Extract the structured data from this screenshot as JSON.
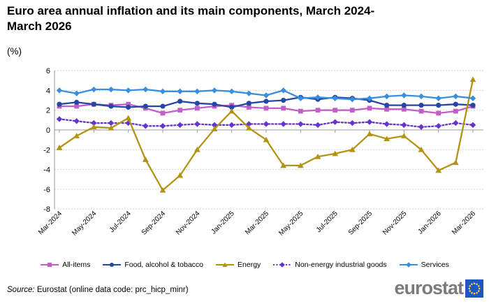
{
  "title": "Euro area annual inflation and its main components, March 2024-March 2026",
  "unit_label": "(%)",
  "source_prefix": "Source:",
  "source_text": "Eurostat (online data code: prc_hicp_minr)",
  "logo_text": "eurostat",
  "colors": {
    "all_items": "#c05fc5",
    "food": "#2646a5",
    "energy": "#b29313",
    "non_energy_goods": "#6633cc",
    "services": "#3a8fdd",
    "grid": "#c9c9c9",
    "axis": "#999999",
    "logo_blue": "#1e56c4",
    "logo_star_yellow": "#f8d12e"
  },
  "chart_data": {
    "type": "line",
    "x": [
      "Mar-2024",
      "Apr-2024",
      "May-2024",
      "Jun-2024",
      "Jul-2024",
      "Aug-2024",
      "Sep-2024",
      "Oct-2024",
      "Nov-2024",
      "Dec-2024",
      "Jan-2025",
      "Feb-2025",
      "Mar-2025",
      "Apr-2025",
      "May-2025",
      "Jun-2025",
      "Jul-2025",
      "Aug-2025",
      "Sep-2025",
      "Oct-2025",
      "Nov-2025",
      "Dec-2025",
      "Jan-2026",
      "Feb-2026",
      "Mar-2026"
    ],
    "x_tick_labels": [
      "Mar-2024",
      "May-2024",
      "Jul-2024",
      "Sep-2024",
      "Nov-2024",
      "Jan-2025",
      "Mar-2025",
      "May-2025",
      "Jul-2025",
      "Sep-2025",
      "Nov-2025",
      "Jan-2026",
      "Mar-2026"
    ],
    "x_label_every": 2,
    "ylim": [
      -8,
      6
    ],
    "ytick_step": 2,
    "grid": true,
    "legend_position": "bottom",
    "series": [
      {
        "name": "All-items",
        "color": "#c05fc5",
        "marker": "square",
        "line": "solid",
        "values": [
          2.4,
          2.4,
          2.6,
          2.5,
          2.6,
          2.2,
          1.7,
          2.0,
          2.2,
          2.4,
          2.5,
          2.3,
          2.2,
          2.2,
          1.9,
          2.0,
          2.0,
          2.0,
          2.2,
          2.1,
          2.1,
          1.9,
          1.7,
          1.9,
          2.4
        ]
      },
      {
        "name": "Food, alcohol & tobacco",
        "color": "#2646a5",
        "marker": "circle",
        "line": "solid",
        "values": [
          2.6,
          2.8,
          2.6,
          2.4,
          2.3,
          2.4,
          2.4,
          2.9,
          2.7,
          2.6,
          2.3,
          2.7,
          2.9,
          3.0,
          3.3,
          3.1,
          3.3,
          3.2,
          3.0,
          2.5,
          2.5,
          2.5,
          2.5,
          2.6,
          2.5
        ]
      },
      {
        "name": "Energy",
        "color": "#b29313",
        "marker": "triangle",
        "line": "solid",
        "values": [
          -1.8,
          -0.6,
          0.3,
          0.2,
          1.2,
          -3.0,
          -6.1,
          -4.6,
          -2.0,
          0.1,
          1.9,
          0.2,
          -1.0,
          -3.6,
          -3.6,
          -2.7,
          -2.4,
          -2.0,
          -0.4,
          -0.9,
          -0.6,
          -2.0,
          -4.1,
          -3.3,
          5.1
        ]
      },
      {
        "name": "Non-energy industrial goods",
        "color": "#6633cc",
        "marker": "diamond",
        "line": "dotted",
        "values": [
          1.1,
          0.9,
          0.7,
          0.7,
          0.7,
          0.4,
          0.4,
          0.5,
          0.6,
          0.5,
          0.5,
          0.6,
          0.6,
          0.6,
          0.6,
          0.5,
          0.8,
          0.7,
          0.8,
          0.6,
          0.5,
          0.3,
          0.4,
          0.7,
          0.5
        ]
      },
      {
        "name": "Services",
        "color": "#3a8fdd",
        "marker": "diamond",
        "line": "solid",
        "values": [
          4.0,
          3.7,
          4.1,
          4.1,
          4.0,
          4.1,
          3.9,
          3.9,
          3.9,
          4.0,
          3.9,
          3.7,
          3.5,
          4.0,
          3.2,
          3.3,
          3.2,
          3.1,
          3.2,
          3.4,
          3.5,
          3.4,
          3.2,
          3.4,
          3.2
        ]
      }
    ]
  }
}
